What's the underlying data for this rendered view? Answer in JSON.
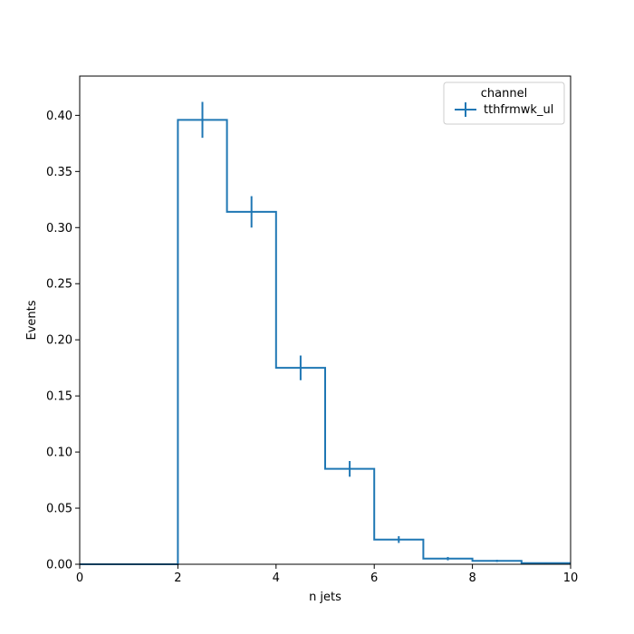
{
  "chart_data": {
    "type": "step",
    "xlabel": "n jets",
    "ylabel": "Events",
    "xlim": [
      0,
      10
    ],
    "ylim": [
      0,
      0.435
    ],
    "xticks": [
      0,
      2,
      4,
      6,
      8,
      10
    ],
    "yticks": [
      0.0,
      0.05,
      0.1,
      0.15,
      0.2,
      0.25,
      0.3,
      0.35,
      0.4
    ],
    "bin_edges": [
      0,
      1,
      2,
      3,
      4,
      5,
      6,
      7,
      8,
      9,
      10
    ],
    "legend": {
      "title": "channel",
      "position": "top-right"
    },
    "series": [
      {
        "name": "tthfrmwk_ul",
        "color": "#1f77b4",
        "values": [
          0.0,
          0.0,
          0.396,
          0.314,
          0.175,
          0.085,
          0.022,
          0.005,
          0.003,
          0.001
        ],
        "errors": [
          0.0,
          0.0,
          0.016,
          0.014,
          0.011,
          0.007,
          0.003,
          0.0015,
          0.001,
          0.0006
        ]
      }
    ]
  }
}
